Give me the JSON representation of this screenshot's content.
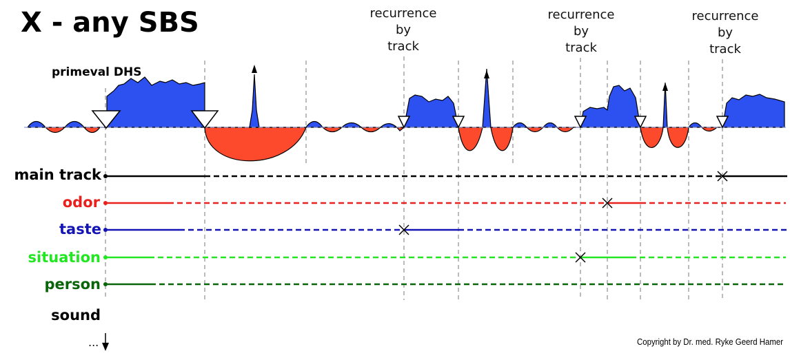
{
  "title": "X - any SBS",
  "primeval_label": "primeval DHS",
  "recurrence_labels": [
    [
      "recurrence",
      "by",
      "track"
    ],
    [
      "recurrence",
      "by",
      "track"
    ],
    [
      "recurrence",
      "by",
      "track"
    ]
  ],
  "tracks": [
    {
      "label": "main track",
      "color": "#000000"
    },
    {
      "label": "odor",
      "color": "#e8211c"
    },
    {
      "label": "taste",
      "color": "#1414b4"
    },
    {
      "label": "situation",
      "color": "#22e622"
    },
    {
      "label": "person",
      "color": "#0a640a"
    },
    {
      "label": "sound",
      "color": "#000000"
    }
  ],
  "more_label": "...",
  "copyright": "Copyright by Dr. med. Ryke Geerd Hamer",
  "colors": {
    "active_fill": "#2d50f0",
    "healing_fill": "#fe4a2c",
    "guide_line": "#777777",
    "baseline": "#8f9ad6"
  },
  "icons": {
    "conflict_marker": "down-triangle-icon",
    "recurrence_marker": "x-mark-icon",
    "crisis": "up-arrow-icon",
    "continuation": "down-arrow-icon"
  }
}
